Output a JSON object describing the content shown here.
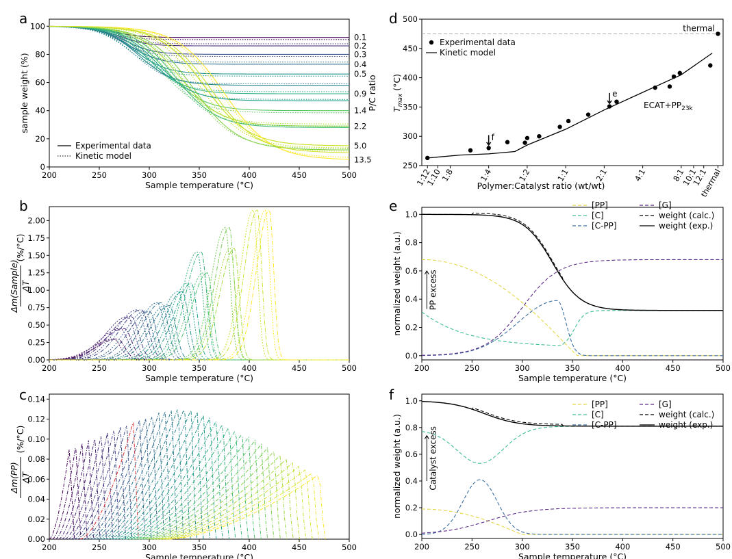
{
  "panels": {
    "a": "a",
    "b": "b",
    "c": "c",
    "d": "d",
    "e": "e",
    "f": "f"
  },
  "colors": {
    "viridis": [
      "#440154",
      "#46327e",
      "#365c8d",
      "#277f8e",
      "#1fa187",
      "#4ac16d",
      "#a0da39",
      "#fde725"
    ],
    "pp": "#e6d74a",
    "c": "#3fbf8f",
    "cpp": "#3b6fa0",
    "g": "#5b2a86",
    "red": "#e03030"
  },
  "chart_data": [
    {
      "id": "a",
      "type": "line",
      "title": "",
      "xlabel": "Sample temperature (°C)",
      "ylabel": "sample weight (%)",
      "right_label": "P/C ratio",
      "xlim": [
        200,
        500
      ],
      "ylim": [
        0,
        105
      ],
      "xticks": [
        200,
        250,
        300,
        350,
        400,
        450,
        500
      ],
      "yticks": [
        0,
        20,
        40,
        60,
        80,
        100
      ],
      "legend": [
        "Experimental data",
        "Kinetic model"
      ],
      "legend_position": "lower-left",
      "series": [
        {
          "ratio": "0.1",
          "plateau": 92,
          "tmid": 265,
          "color": "#440154"
        },
        {
          "ratio": "0.2",
          "plateau": 86,
          "tmid": 270,
          "color": "#472c7a"
        },
        {
          "ratio": "0.3",
          "plateau": 80,
          "tmid": 275,
          "color": "#3b518b"
        },
        {
          "ratio": "0.4",
          "plateau": 73,
          "tmid": 280,
          "color": "#2c718e"
        },
        {
          "ratio": "0.5",
          "plateau": 66,
          "tmid": 285,
          "color": "#21908d"
        },
        {
          "ratio": "0.9",
          "plateau": 52,
          "tmid": 300,
          "color": "#27ad81"
        },
        {
          "ratio": "1.4",
          "plateau": 40,
          "tmid": 315,
          "color": "#5cc863"
        },
        {
          "ratio": "2.2",
          "plateau": 29,
          "tmid": 330,
          "color": "#aadc32"
        },
        {
          "ratio": "5.0",
          "plateau": 15,
          "tmid": 355,
          "color": "#c8e020"
        },
        {
          "ratio": "13.5",
          "plateau": 5,
          "tmid": 375,
          "color": "#fde725"
        }
      ],
      "extra_plateaus": [
        58,
        47,
        28,
        12,
        10
      ]
    },
    {
      "id": "b",
      "type": "line",
      "xlabel": "Sample temperature (°C)",
      "ylabel_top": "Δm(Sample)",
      "ylabel_bottom": "ΔT",
      "ylabel_unit": "(%/°C)",
      "xlim": [
        200,
        500
      ],
      "ylim": [
        0,
        2.2
      ],
      "xticks": [
        200,
        250,
        300,
        350,
        400,
        450,
        500
      ],
      "yticks": [
        "0.00",
        "0.25",
        "0.50",
        "0.75",
        "1.00",
        "1.25",
        "1.50",
        "1.75",
        "2.00"
      ],
      "peaks": [
        {
          "t": 268,
          "h": 0.3,
          "w": 30
        },
        {
          "t": 275,
          "h": 0.45,
          "w": 30
        },
        {
          "t": 282,
          "h": 0.62,
          "w": 30
        },
        {
          "t": 292,
          "h": 0.72,
          "w": 30
        },
        {
          "t": 300,
          "h": 0.7,
          "w": 28
        },
        {
          "t": 312,
          "h": 0.82,
          "w": 27
        },
        {
          "t": 320,
          "h": 0.78,
          "w": 26
        },
        {
          "t": 333,
          "h": 0.98,
          "w": 25
        },
        {
          "t": 342,
          "h": 1.1,
          "w": 24
        },
        {
          "t": 352,
          "h": 1.55,
          "w": 22
        },
        {
          "t": 358,
          "h": 1.25,
          "w": 22
        },
        {
          "t": 380,
          "h": 1.9,
          "w": 20
        },
        {
          "t": 385,
          "h": 1.6,
          "w": 20
        },
        {
          "t": 408,
          "h": 2.15,
          "w": 18
        },
        {
          "t": 420,
          "h": 2.15,
          "w": 18
        }
      ]
    },
    {
      "id": "c",
      "type": "line",
      "xlabel": "Sample temperature (°C)",
      "ylabel_top": "Δm(PP)",
      "ylabel_bottom": "ΔT",
      "ylabel_unit": "(%/°C)",
      "xlim": [
        200,
        500
      ],
      "ylim": [
        0,
        0.145
      ],
      "xticks": [
        200,
        250,
        300,
        350,
        400,
        450,
        500
      ],
      "yticks": [
        "0.00",
        "0.02",
        "0.04",
        "0.06",
        "0.08",
        "0.10",
        "0.12",
        "0.14"
      ],
      "curve_count": 40,
      "first_peak": {
        "t": 220,
        "h": 0.09
      },
      "last_peak": {
        "t": 470,
        "h": 0.065
      },
      "max_height": 0.14,
      "red_curve_peak": {
        "t": 282,
        "h": 0.125
      }
    },
    {
      "id": "d",
      "type": "scatter",
      "ylabel": "Tmax (°C)",
      "ylabel_main": "T",
      "ylabel_sub": "max",
      "ylabel_unit": " (°C)",
      "xlabel": "Polymer:Catalyst ratio (wt/wt)",
      "ylim": [
        250,
        500
      ],
      "yticks": [
        250,
        300,
        350,
        400,
        450,
        500
      ],
      "xticks": [
        "1:12",
        "1:10",
        "1:8",
        "1:4",
        "1:2",
        "1:1",
        "2:1",
        "4:1",
        "8:1",
        "10:1",
        "12:1",
        "thermal"
      ],
      "xtick_pos": [
        0.083,
        0.1,
        0.125,
        0.25,
        0.5,
        1,
        2,
        4,
        8,
        10,
        12,
        15.5
      ],
      "xlim_log": [
        0.075,
        17
      ],
      "thermal_value": 475,
      "thermal_label": "thermal",
      "legend": [
        "Experimental data",
        "Kinetic model"
      ],
      "annotations": {
        "f": "f",
        "e": "e",
        "catalyst_main": "ECAT+PP",
        "catalyst_sub": "23k"
      },
      "points": [
        {
          "x": 0.083,
          "y": 263
        },
        {
          "x": 0.18,
          "y": 276
        },
        {
          "x": 0.25,
          "y": 280
        },
        {
          "x": 0.35,
          "y": 290
        },
        {
          "x": 0.48,
          "y": 289
        },
        {
          "x": 0.5,
          "y": 297
        },
        {
          "x": 0.62,
          "y": 300
        },
        {
          "x": 0.9,
          "y": 316
        },
        {
          "x": 1.05,
          "y": 326
        },
        {
          "x": 1.5,
          "y": 337
        },
        {
          "x": 2.2,
          "y": 351
        },
        {
          "x": 2.5,
          "y": 359
        },
        {
          "x": 5.0,
          "y": 383
        },
        {
          "x": 6.5,
          "y": 385
        },
        {
          "x": 7.0,
          "y": 402
        },
        {
          "x": 7.8,
          "y": 408
        },
        {
          "x": 13.5,
          "y": 421
        },
        {
          "x": 15.5,
          "y": 475
        }
      ],
      "model": [
        {
          "x": 0.083,
          "y": 263
        },
        {
          "x": 0.15,
          "y": 268
        },
        {
          "x": 0.25,
          "y": 270
        },
        {
          "x": 0.4,
          "y": 274
        },
        {
          "x": 0.5,
          "y": 285
        },
        {
          "x": 1,
          "y": 312
        },
        {
          "x": 2,
          "y": 345
        },
        {
          "x": 4,
          "y": 375
        },
        {
          "x": 8,
          "y": 405
        },
        {
          "x": 14,
          "y": 442
        }
      ]
    },
    {
      "id": "e",
      "type": "line",
      "xlabel": "Sample temperature (°C)",
      "ylabel": "normalized weight (a.u.)",
      "xlim": [
        200,
        500
      ],
      "ylim": [
        -0.03,
        1.05
      ],
      "xticks": [
        200,
        250,
        300,
        350,
        400,
        450,
        500
      ],
      "yticks": [
        "0.0",
        "0.2",
        "0.4",
        "0.6",
        "0.8",
        "1.0"
      ],
      "annotation": "PP excess",
      "legend": [
        "[PP]",
        "[C]",
        "[C-PP]",
        "[G]",
        "weight (calc.)",
        "weight (exp.)"
      ],
      "params": {
        "pp0": 0.68,
        "c0": 0.31,
        "tend": 355,
        "g_final": 0.68,
        "w_final": 0.32,
        "cpp_peak": 0.39,
        "cpp_t": 335,
        "c_min": 0.06
      }
    },
    {
      "id": "f",
      "type": "line",
      "xlabel": "Sample temperature (°C)",
      "ylabel": "normalized weight (a.u.)",
      "xlim": [
        200,
        500
      ],
      "ylim": [
        -0.03,
        1.05
      ],
      "xticks": [
        200,
        250,
        300,
        350,
        400,
        450,
        500
      ],
      "yticks": [
        "0.0",
        "0.2",
        "0.4",
        "0.6",
        "0.8",
        "1.0"
      ],
      "annotation": "Catalyst excess",
      "legend": [
        "[PP]",
        "[C]",
        "[C-PP]",
        "[G]",
        "weight (calc.)",
        "weight (exp.)"
      ],
      "params": {
        "pp0": 0.19,
        "c0": 0.78,
        "g_final": 0.2,
        "w_final": 0.81,
        "cpp_peak": 0.41,
        "cpp_t": 258,
        "c_min": 0.53
      }
    }
  ]
}
